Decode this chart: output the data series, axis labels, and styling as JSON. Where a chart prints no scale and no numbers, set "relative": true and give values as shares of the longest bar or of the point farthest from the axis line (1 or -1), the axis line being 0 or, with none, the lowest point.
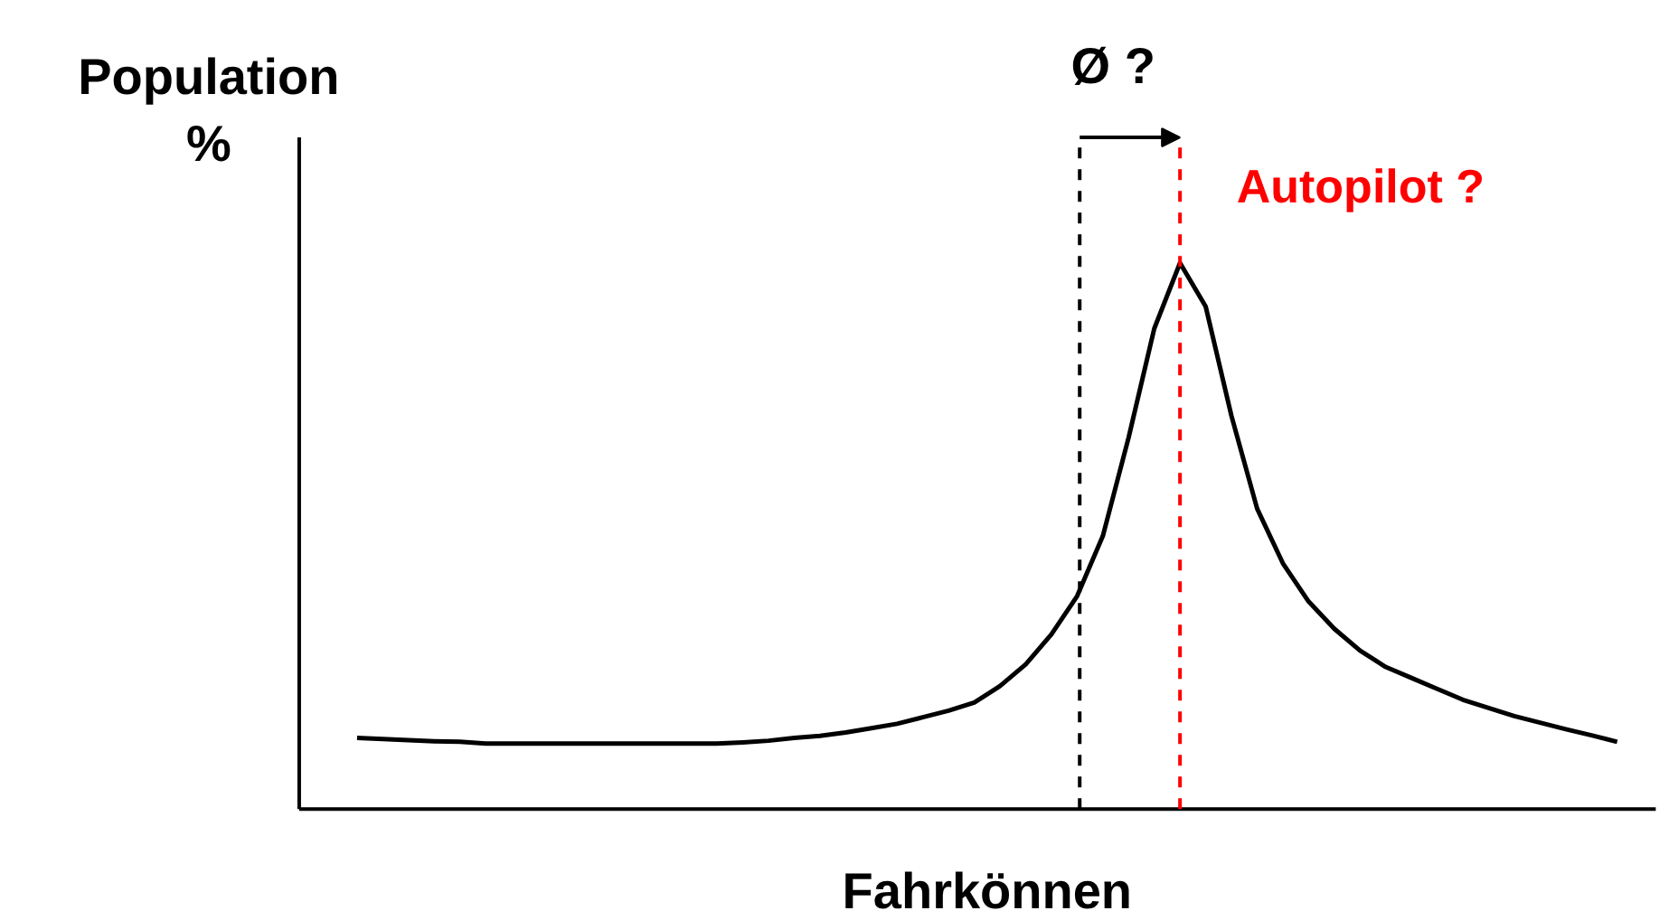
{
  "chart_data": {
    "type": "line",
    "relative": true,
    "xlabel": "Fahrkönnen",
    "ylabel": "Population\n%",
    "categories": [
      null,
      null,
      null,
      null,
      null,
      null,
      null,
      null,
      null,
      null,
      null,
      null,
      null,
      null,
      null,
      null,
      null,
      null,
      null,
      null,
      null,
      null,
      null,
      null,
      null,
      null,
      null,
      null,
      null,
      null,
      null,
      null,
      null,
      null,
      null,
      null,
      null,
      null,
      null,
      null,
      null,
      null,
      null,
      null,
      null,
      null,
      null,
      null,
      null,
      null
    ],
    "series": [
      {
        "color": "#000000",
        "values": [
          0.13,
          0.128,
          0.126,
          0.124,
          0.123,
          0.12,
          0.12,
          0.12,
          0.12,
          0.12,
          0.12,
          0.12,
          0.12,
          0.12,
          0.12,
          0.122,
          0.125,
          0.13,
          0.134,
          0.14,
          0.148,
          0.156,
          0.168,
          0.18,
          0.195,
          0.225,
          0.265,
          0.32,
          0.39,
          0.5,
          0.68,
          0.88,
          1.0,
          0.92,
          0.72,
          0.55,
          0.45,
          0.38,
          0.33,
          0.29,
          0.26,
          0.24,
          0.22,
          0.2,
          0.185,
          0.17,
          0.158,
          0.146,
          0.135,
          0.123
        ]
      }
    ],
    "annotations": [
      "Ø ?",
      "Autopilot ?"
    ],
    "marker": "none",
    "grid": false
  }
}
